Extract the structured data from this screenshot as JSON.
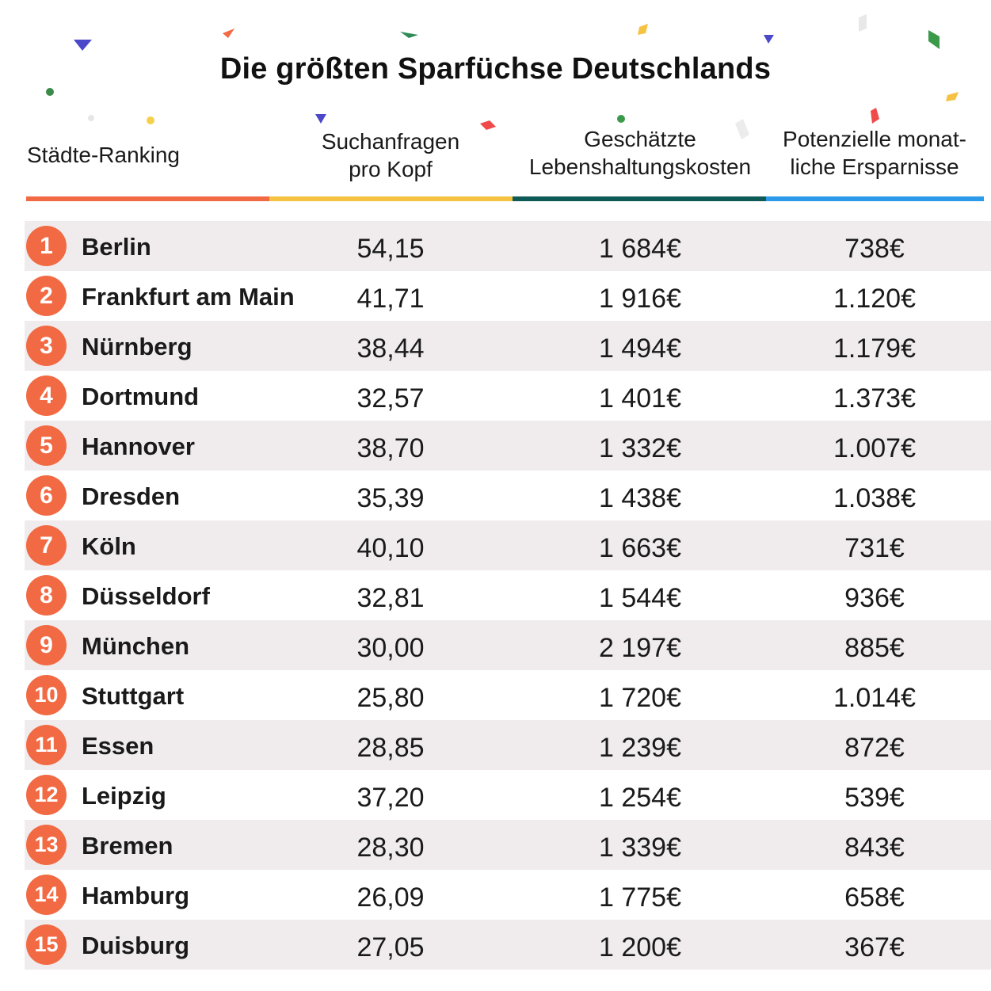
{
  "title": "Die größten Sparfüchse Deutschlands",
  "headers": {
    "rank": "Städte-Ranking",
    "search_line1": "Suchanfragen",
    "search_line2": "pro Kopf",
    "cost_line1": "Geschätzte",
    "cost_line2": "Lebenshaltungskosten",
    "savings_line1": "Potenzielle monat-",
    "savings_line2": "liche Ersparnisse"
  },
  "colors": {
    "rank_accent": "#f26a43",
    "search_accent": "#f5c242",
    "cost_accent": "#0d5a56",
    "savings_accent": "#2b9ae8",
    "row_shade": "#f0eced"
  },
  "rows": [
    {
      "rank": "1",
      "city": "Berlin",
      "search": "54,15",
      "cost": "1 684€",
      "savings": "738€"
    },
    {
      "rank": "2",
      "city": "Frankfurt am Main",
      "search": "41,71",
      "cost": "1 916€",
      "savings": "1.120€"
    },
    {
      "rank": "3",
      "city": "Nürnberg",
      "search": "38,44",
      "cost": "1 494€",
      "savings": "1.179€"
    },
    {
      "rank": "4",
      "city": "Dortmund",
      "search": "32,57",
      "cost": "1 401€",
      "savings": "1.373€"
    },
    {
      "rank": "5",
      "city": "Hannover",
      "search": "38,70",
      "cost": "1 332€",
      "savings": "1.007€"
    },
    {
      "rank": "6",
      "city": "Dresden",
      "search": "35,39",
      "cost": "1 438€",
      "savings": "1.038€"
    },
    {
      "rank": "7",
      "city": "Köln",
      "search": "40,10",
      "cost": "1 663€",
      "savings": "731€"
    },
    {
      "rank": "8",
      "city": "Düsseldorf",
      "search": "32,81",
      "cost": "1 544€",
      "savings": "936€"
    },
    {
      "rank": "9",
      "city": "München",
      "search": "30,00",
      "cost": "2 197€",
      "savings": "885€"
    },
    {
      "rank": "10",
      "city": "Stuttgart",
      "search": "25,80",
      "cost": "1 720€",
      "savings": "1.014€"
    },
    {
      "rank": "11",
      "city": "Essen",
      "search": "28,85",
      "cost": "1 239€",
      "savings": "872€"
    },
    {
      "rank": "12",
      "city": "Leipzig",
      "search": "37,20",
      "cost": "1 254€",
      "savings": "539€"
    },
    {
      "rank": "13",
      "city": "Bremen",
      "search": "28,30",
      "cost": "1 339€",
      "savings": "843€"
    },
    {
      "rank": "14",
      "city": "Hamburg",
      "search": "26,09",
      "cost": "1 775€",
      "savings": "658€"
    },
    {
      "rank": "15",
      "city": "Duisburg",
      "search": "27,05",
      "cost": "1 200€",
      "savings": "367€"
    }
  ]
}
